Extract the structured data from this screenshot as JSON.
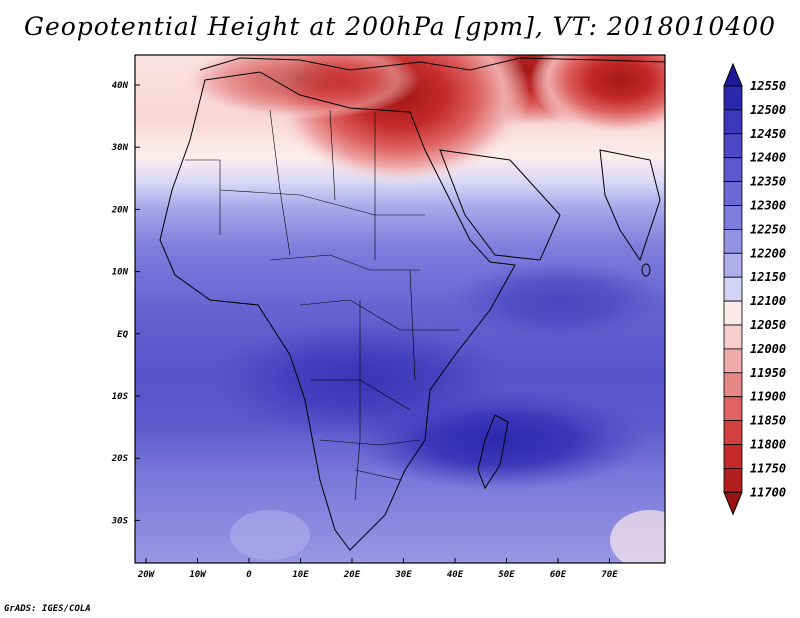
{
  "title": "Geopotential Height at 200hPa [gpm], VT: 2018010400",
  "credit": "GrADS: IGES/COLA",
  "map": {
    "lat_ticks": [
      "40N",
      "30N",
      "20N",
      "10N",
      "EQ",
      "10S",
      "20S",
      "30S"
    ],
    "lon_ticks": [
      "20W",
      "10W",
      "0",
      "10E",
      "20E",
      "30E",
      "40E",
      "50E",
      "60E",
      "70E"
    ]
  },
  "colorbar": {
    "levels": [
      "12550",
      "12500",
      "12450",
      "12400",
      "12350",
      "12300",
      "12250",
      "12200",
      "12150",
      "12100",
      "12050",
      "12000",
      "11950",
      "11900",
      "11850",
      "11800",
      "11750",
      "11700"
    ],
    "colors": [
      "#1c1a9a",
      "#2a28ac",
      "#3b39b9",
      "#4a48c3",
      "#5a58cc",
      "#6b69d4",
      "#7e7cdc",
      "#9492e3",
      "#b0aeeb",
      "#d4d3f5",
      "#fbe9e9",
      "#f6cccc",
      "#efaaaa",
      "#e78787",
      "#de6262",
      "#d23f3f",
      "#c42a2a",
      "#b21e1e",
      "#9a1212"
    ]
  }
}
